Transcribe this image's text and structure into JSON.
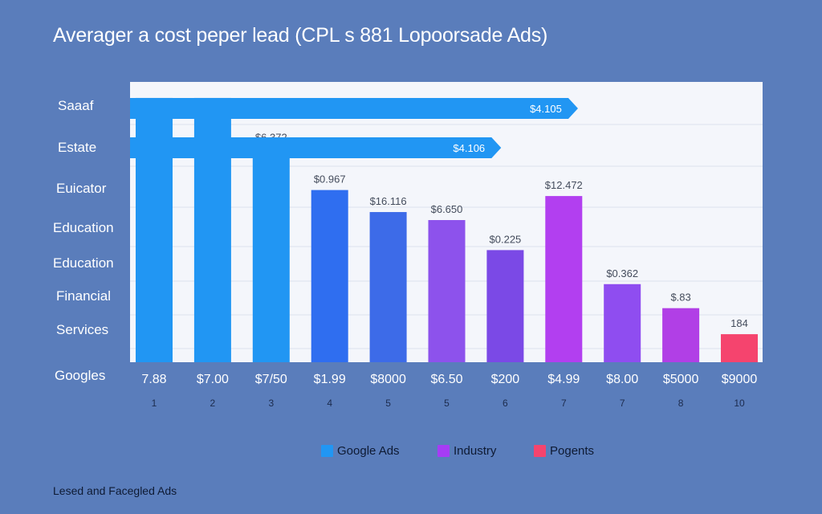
{
  "title": "Averager a cost peper lead (CPL s 881 Lopoorsade Ads)",
  "footer": "Lesed and Facegled Ads",
  "colors": {
    "background": "#5a7dbb",
    "plot_area": "#f4f6fb",
    "google_ads": "#2196f3",
    "industry": "#a63cf5",
    "pogents": "#f5446e"
  },
  "y_category_labels": [
    "Saaaf",
    "Estate",
    "Euicator",
    "Education",
    "Education",
    "Financial",
    "Services",
    "Googles"
  ],
  "chart_data": {
    "type": "bar",
    "title": "Averager a cost peper lead (CPL s 881 Lopoorsade Ads)",
    "grid": true,
    "ylim": [
      0,
      14
    ],
    "legend_position": "bottom-center",
    "legend": [
      {
        "name": "Google Ads",
        "color": "#2196f3"
      },
      {
        "name": "Industry",
        "color": "#a63cf5"
      },
      {
        "name": "Pogents",
        "color": "#f5446e"
      }
    ],
    "categories": [
      "7.88",
      "$7.00",
      "$7/50",
      "$1.99",
      "$8000",
      "$6.50",
      "$200",
      "$4.99",
      "$8.00",
      "$5000",
      "$9000"
    ],
    "sub_labels": [
      "1",
      "2",
      "3",
      "4",
      "5",
      "5",
      "6",
      "7",
      "7",
      "8",
      "10"
    ],
    "values": [
      13.2,
      13.2,
      10.7,
      8.6,
      7.5,
      7.1,
      5.6,
      8.3,
      3.9,
      2.7,
      1.4
    ],
    "value_labels": [
      "",
      "",
      "$6.372",
      "$0.967",
      "$16.116",
      "$6.650",
      "$0.225",
      "$12.472",
      "$0.362",
      "$.83",
      "184"
    ],
    "bar_colors": [
      "#2196f3",
      "#2196f3",
      "#2196f3",
      "#2f6ef0",
      "#3d6be8",
      "#8d52ec",
      "#7b49e6",
      "#b23ff0",
      "#8f4df0",
      "#b13fe6",
      "#f5446e"
    ],
    "arrow_bars": [
      {
        "label": "$4.105",
        "value": 9.7,
        "row": 0
      },
      {
        "label": "$4.106",
        "value": 8.0,
        "row": 1
      }
    ]
  }
}
